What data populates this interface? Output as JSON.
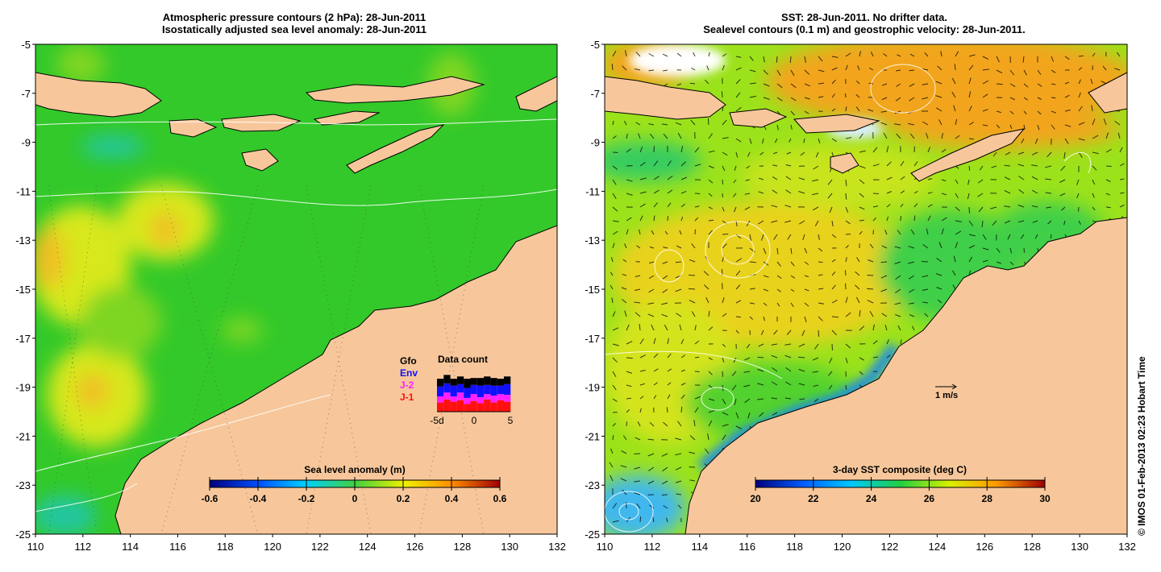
{
  "left_panel": {
    "title_line1": "Atmospheric pressure contours (2 hPa): 28-Jun-2011",
    "title_line2": "Isostatically adjusted sea level anomaly: 28-Jun-2011",
    "colorbar": {
      "label": "Sea level anomaly (m)",
      "ticks": [
        "-0.6",
        "-0.4",
        "-0.2",
        "0",
        "0.2",
        "0.4",
        "0.6"
      ],
      "range": [
        -0.6,
        0.6
      ]
    },
    "data_count": {
      "title": "Data count",
      "legend": [
        {
          "label": "Gfo",
          "color": "#000000"
        },
        {
          "label": "Env",
          "color": "#1010ff"
        },
        {
          "label": "J-2",
          "color": "#ff20ff"
        },
        {
          "label": "J-1",
          "color": "#ff1010"
        }
      ],
      "axis_labels": [
        "-5d",
        "0",
        "5"
      ],
      "stacks": [
        [
          1.0,
          1.3,
          0.8,
          1.2
        ],
        [
          1.1,
          1.2,
          0.9,
          1.6
        ],
        [
          0.9,
          1.4,
          0.7,
          1.3
        ],
        [
          1.0,
          1.1,
          1.0,
          1.5
        ],
        [
          1.2,
          1.3,
          0.8,
          1.0
        ],
        [
          0.9,
          1.2,
          0.9,
          1.4
        ],
        [
          1.0,
          1.5,
          0.8,
          1.1
        ],
        [
          1.1,
          1.2,
          0.7,
          1.6
        ],
        [
          1.0,
          1.3,
          0.9,
          1.2
        ],
        [
          0.9,
          1.1,
          0.8,
          1.5
        ],
        [
          1.0,
          1.4,
          0.9,
          1.3
        ]
      ]
    }
  },
  "right_panel": {
    "title_line1": "SST: 28-Jun-2011. No drifter data.",
    "title_line2": "Sealevel contours (0.1 m) and geostrophic velocity: 28-Jun-2011.",
    "colorbar": {
      "label": "3-day SST composite (deg C)",
      "ticks": [
        "20",
        "22",
        "24",
        "26",
        "28",
        "30"
      ],
      "range": [
        20,
        30
      ]
    },
    "velocity_scale_label": "1 m/s"
  },
  "axes": {
    "lon_ticks": [
      "110",
      "112",
      "114",
      "116",
      "118",
      "120",
      "122",
      "124",
      "126",
      "128",
      "130",
      "132"
    ],
    "lat_ticks": [
      "-5",
      "-7",
      "-9",
      "-11",
      "-13",
      "-15",
      "-17",
      "-19",
      "-21",
      "-23",
      "-25"
    ],
    "lon_range": [
      110,
      132
    ],
    "lat_range": [
      -25,
      -5
    ]
  },
  "credit": "© IMOS 01-Feb-2013 02:23 Hobart Time",
  "colors": {
    "land": "#f7c79b",
    "sla_ocean": "#33c92a",
    "sst_ocean": "#9ce21b",
    "sla_scale": [
      "#000080",
      "#0050ff",
      "#00d0ff",
      "#40d040",
      "#f0f000",
      "#ff9000",
      "#a00000"
    ],
    "sst_scale": [
      "#00007f",
      "#0060ff",
      "#00c8ff",
      "#20d040",
      "#d8f000",
      "#ff9a00",
      "#a00000"
    ]
  }
}
